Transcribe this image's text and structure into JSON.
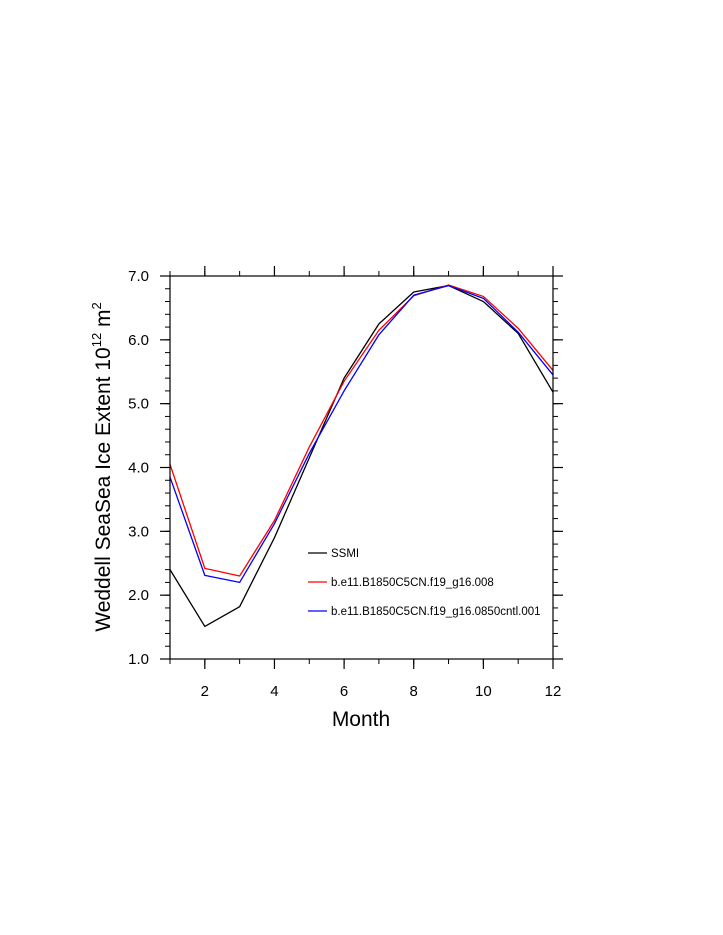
{
  "chart_data": {
    "type": "line",
    "xlabel": "Month",
    "ylabel_main": "Weddell SeaSea Ice Extent 10",
    "ylabel_sup": "12",
    "ylabel_unit": " m",
    "ylabel_unit_sup": "2",
    "xlim": [
      1,
      12
    ],
    "ylim": [
      1.0,
      7.0
    ],
    "x_ticks": [
      2,
      4,
      6,
      8,
      10,
      12
    ],
    "x_tick_labels": [
      "2",
      "4",
      "6",
      "8",
      "10",
      "12"
    ],
    "y_ticks": [
      1.0,
      2.0,
      3.0,
      4.0,
      5.0,
      6.0,
      7.0
    ],
    "y_tick_labels": [
      "1.0",
      "2.0",
      "3.0",
      "4.0",
      "5.0",
      "6.0",
      "7.0"
    ],
    "grid": false,
    "legend_position": "lower-right",
    "x": [
      1,
      2,
      3,
      4,
      5,
      6,
      7,
      8,
      9,
      10,
      11,
      12
    ],
    "series": [
      {
        "name": "SSMI",
        "color": "#000000",
        "values": [
          2.4,
          1.51,
          1.82,
          2.9,
          4.15,
          5.4,
          6.25,
          6.75,
          6.85,
          6.6,
          6.1,
          5.18
        ]
      },
      {
        "name": "b.e11.B1850C5CN.f19_g16.008",
        "color": "#ff0000",
        "values": [
          4.05,
          2.42,
          2.3,
          3.17,
          4.32,
          5.35,
          6.15,
          6.69,
          6.86,
          6.68,
          6.18,
          5.52
        ]
      },
      {
        "name": "b.e11.B1850C5CN.f19_g16.0850cntl.001",
        "color": "#0000ff",
        "values": [
          3.85,
          2.31,
          2.2,
          3.12,
          4.22,
          5.2,
          6.08,
          6.7,
          6.85,
          6.65,
          6.12,
          5.45
        ]
      }
    ]
  }
}
